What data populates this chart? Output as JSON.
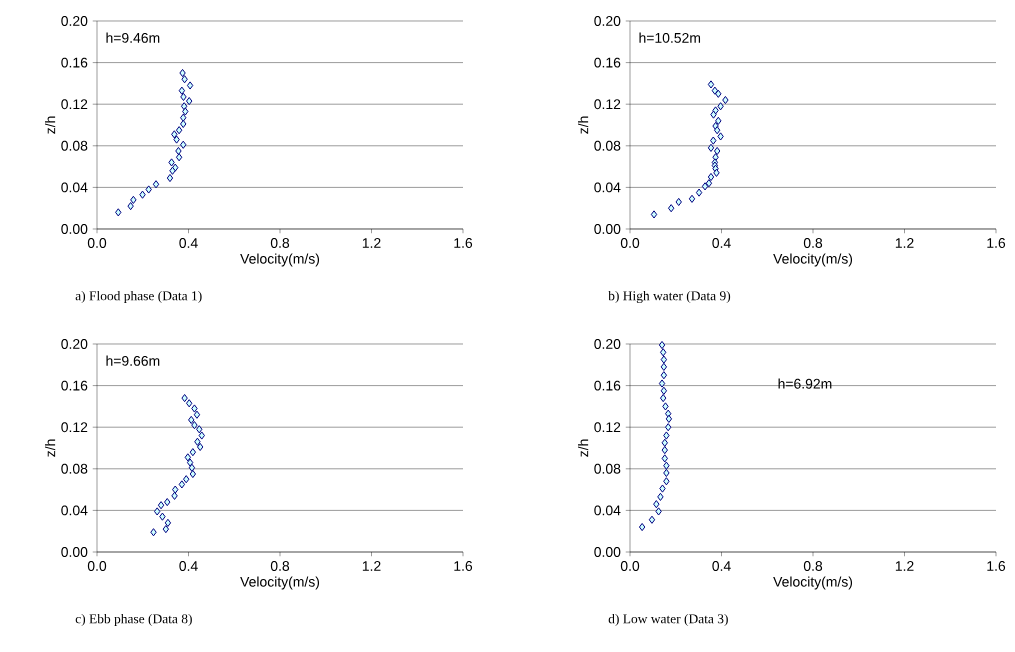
{
  "chart_data": [
    {
      "type": "scatter",
      "title": "a) Flood phase (Data 1)",
      "xlabel": "Velocity(m/s)",
      "ylabel": "z/h",
      "annotations": [
        "h=9.46m"
      ],
      "marker": "diamond",
      "grid": "y",
      "xlim": [
        0,
        1.6
      ],
      "ylim": [
        0,
        0.2
      ],
      "xticks": [
        {
          "value": 0,
          "label": "0.0"
        },
        {
          "value": 0.4,
          "label": "0.4"
        },
        {
          "value": 0.8,
          "label": "0.8"
        },
        {
          "value": 1.2,
          "label": "1.2"
        },
        {
          "value": 1.6,
          "label": "1.6"
        }
      ],
      "yticks": [
        {
          "value": 0,
          "label": "0.00"
        },
        {
          "value": 0.04,
          "label": "0.04"
        },
        {
          "value": 0.08,
          "label": "0.08"
        },
        {
          "value": 0.12,
          "label": "0.12"
        },
        {
          "value": 0.16,
          "label": "0.16"
        },
        {
          "value": 0.2,
          "label": "0.20"
        }
      ],
      "series": [
        {
          "color": "#000080",
          "x": [
            0.374,
            0.383,
            0.407,
            0.371,
            0.378,
            0.403,
            0.381,
            0.386,
            0.377,
            0.377,
            0.359,
            0.338,
            0.348,
            0.377,
            0.356,
            0.359,
            0.326,
            0.342,
            0.33,
            0.319,
            0.258,
            0.226,
            0.199,
            0.159,
            0.147,
            0.093
          ],
          "values": [
            0.15,
            0.144,
            0.138,
            0.133,
            0.127,
            0.123,
            0.118,
            0.113,
            0.107,
            0.101,
            0.095,
            0.091,
            0.086,
            0.081,
            0.075,
            0.069,
            0.064,
            0.059,
            0.056,
            0.049,
            0.043,
            0.038,
            0.033,
            0.028,
            0.022,
            0.016
          ]
        }
      ]
    },
    {
      "type": "scatter",
      "title": "b) High water (Data 9)",
      "xlabel": "Velocity(m/s)",
      "ylabel": "z/h",
      "annotations": [
        "h=10.52m"
      ],
      "marker": "diamond",
      "grid": "y",
      "xlim": [
        0,
        1.6
      ],
      "ylim": [
        0,
        0.2
      ],
      "xticks": [
        {
          "value": 0,
          "label": "0.0"
        },
        {
          "value": 0.4,
          "label": "0.4"
        },
        {
          "value": 0.8,
          "label": "0.8"
        },
        {
          "value": 1.2,
          "label": "1.2"
        },
        {
          "value": 1.6,
          "label": "1.6"
        }
      ],
      "yticks": [
        {
          "value": 0,
          "label": "0.00"
        },
        {
          "value": 0.04,
          "label": "0.04"
        },
        {
          "value": 0.08,
          "label": "0.08"
        },
        {
          "value": 0.12,
          "label": "0.12"
        },
        {
          "value": 0.16,
          "label": "0.16"
        },
        {
          "value": 0.2,
          "label": "0.20"
        }
      ],
      "series": [
        {
          "color": "#000080",
          "x": [
            0.354,
            0.371,
            0.386,
            0.417,
            0.396,
            0.374,
            0.365,
            0.386,
            0.374,
            0.381,
            0.396,
            0.364,
            0.354,
            0.381,
            0.374,
            0.371,
            0.371,
            0.374,
            0.378,
            0.354,
            0.345,
            0.328,
            0.302,
            0.271,
            0.213,
            0.18,
            0.105
          ],
          "values": [
            0.139,
            0.133,
            0.13,
            0.124,
            0.118,
            0.114,
            0.11,
            0.104,
            0.099,
            0.095,
            0.089,
            0.085,
            0.078,
            0.075,
            0.069,
            0.064,
            0.061,
            0.058,
            0.054,
            0.05,
            0.044,
            0.041,
            0.035,
            0.029,
            0.026,
            0.02,
            0.014
          ]
        }
      ]
    },
    {
      "type": "scatter",
      "title": "c) Ebb phase (Data 8)",
      "xlabel": "Velocity(m/s)",
      "ylabel": "z/h",
      "annotations": [
        "h=9.66m"
      ],
      "marker": "diamond",
      "grid": "y",
      "xlim": [
        0,
        1.6
      ],
      "ylim": [
        0,
        0.2
      ],
      "xticks": [
        {
          "value": 0,
          "label": "0.0"
        },
        {
          "value": 0.4,
          "label": "0.4"
        },
        {
          "value": 0.8,
          "label": "0.8"
        },
        {
          "value": 1.2,
          "label": "1.2"
        },
        {
          "value": 1.6,
          "label": "1.6"
        }
      ],
      "yticks": [
        {
          "value": 0,
          "label": "0.00"
        },
        {
          "value": 0.04,
          "label": "0.04"
        },
        {
          "value": 0.08,
          "label": "0.08"
        },
        {
          "value": 0.12,
          "label": "0.12"
        },
        {
          "value": 0.16,
          "label": "0.16"
        },
        {
          "value": 0.2,
          "label": "0.20"
        }
      ],
      "series": [
        {
          "color": "#000080",
          "x": [
            0.383,
            0.403,
            0.426,
            0.437,
            0.412,
            0.426,
            0.447,
            0.458,
            0.439,
            0.451,
            0.419,
            0.397,
            0.407,
            0.415,
            0.419,
            0.39,
            0.371,
            0.342,
            0.339,
            0.307,
            0.28,
            0.263,
            0.286,
            0.31,
            0.301,
            0.247
          ],
          "values": [
            0.148,
            0.143,
            0.138,
            0.132,
            0.127,
            0.122,
            0.118,
            0.112,
            0.106,
            0.101,
            0.096,
            0.091,
            0.086,
            0.081,
            0.075,
            0.07,
            0.065,
            0.06,
            0.054,
            0.048,
            0.045,
            0.039,
            0.034,
            0.028,
            0.022,
            0.019
          ]
        }
      ]
    },
    {
      "type": "scatter",
      "title": "d) Low water (Data 3)",
      "xlabel": "Velocity(m/s)",
      "ylabel": "z/h",
      "annotations": [
        "h=6.92m"
      ],
      "marker": "diamond",
      "grid": "y",
      "xlim": [
        0,
        1.6
      ],
      "ylim": [
        0,
        0.2
      ],
      "xticks": [
        {
          "value": 0,
          "label": "0.0"
        },
        {
          "value": 0.4,
          "label": "0.4"
        },
        {
          "value": 0.8,
          "label": "0.8"
        },
        {
          "value": 1.2,
          "label": "1.2"
        },
        {
          "value": 1.6,
          "label": "1.6"
        }
      ],
      "yticks": [
        {
          "value": 0,
          "label": "0.00"
        },
        {
          "value": 0.04,
          "label": "0.04"
        },
        {
          "value": 0.08,
          "label": "0.08"
        },
        {
          "value": 0.12,
          "label": "0.12"
        },
        {
          "value": 0.16,
          "label": "0.16"
        },
        {
          "value": 0.2,
          "label": "0.20"
        }
      ],
      "series": [
        {
          "color": "#000080",
          "x": [
            0.14,
            0.145,
            0.148,
            0.148,
            0.148,
            0.14,
            0.148,
            0.145,
            0.155,
            0.167,
            0.17,
            0.167,
            0.159,
            0.152,
            0.152,
            0.152,
            0.159,
            0.159,
            0.159,
            0.142,
            0.133,
            0.115,
            0.125,
            0.096,
            0.053
          ],
          "values": [
            0.199,
            0.192,
            0.185,
            0.178,
            0.17,
            0.162,
            0.155,
            0.148,
            0.14,
            0.133,
            0.128,
            0.12,
            0.112,
            0.105,
            0.098,
            0.09,
            0.083,
            0.076,
            0.068,
            0.061,
            0.053,
            0.046,
            0.039,
            0.031,
            0.024
          ]
        }
      ]
    }
  ]
}
